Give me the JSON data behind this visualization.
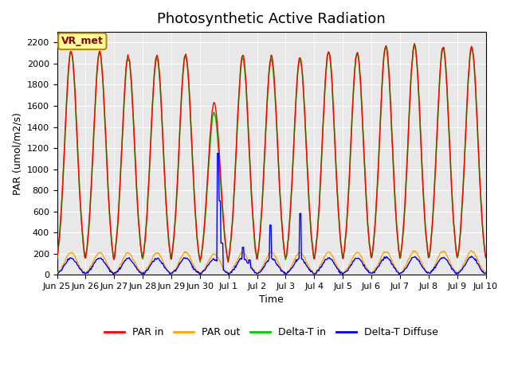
{
  "title": "Photosynthetic Active Radiation",
  "ylabel": "PAR (umol/m2/s)",
  "xlabel": "Time",
  "annotation": "VR_met",
  "ylim": [
    0,
    2300
  ],
  "yticks": [
    0,
    200,
    400,
    600,
    800,
    1000,
    1200,
    1400,
    1600,
    1800,
    2000,
    2200
  ],
  "xtick_labels": [
    "Jun 25",
    "Jun 26",
    "Jun 27",
    "Jun 28",
    "Jun 29",
    "Jun 30",
    "Jul 1",
    "Jul 2",
    "Jul 3",
    "Jul 4",
    "Jul 5",
    "Jul 6",
    "Jul 7",
    "Jul 8",
    "Jul 9",
    "Jul 10"
  ],
  "colors": {
    "PAR_in": "#FF0000",
    "PAR_out": "#FFA500",
    "Delta_T_in": "#00CC00",
    "Delta_T_Diffuse": "#0000FF"
  },
  "legend_labels": [
    "PAR in",
    "PAR out",
    "Delta-T in",
    "Delta-T Diffuse"
  ],
  "plot_bg_color": "#E8E8E8",
  "title_fontsize": 13,
  "n_days": 15
}
